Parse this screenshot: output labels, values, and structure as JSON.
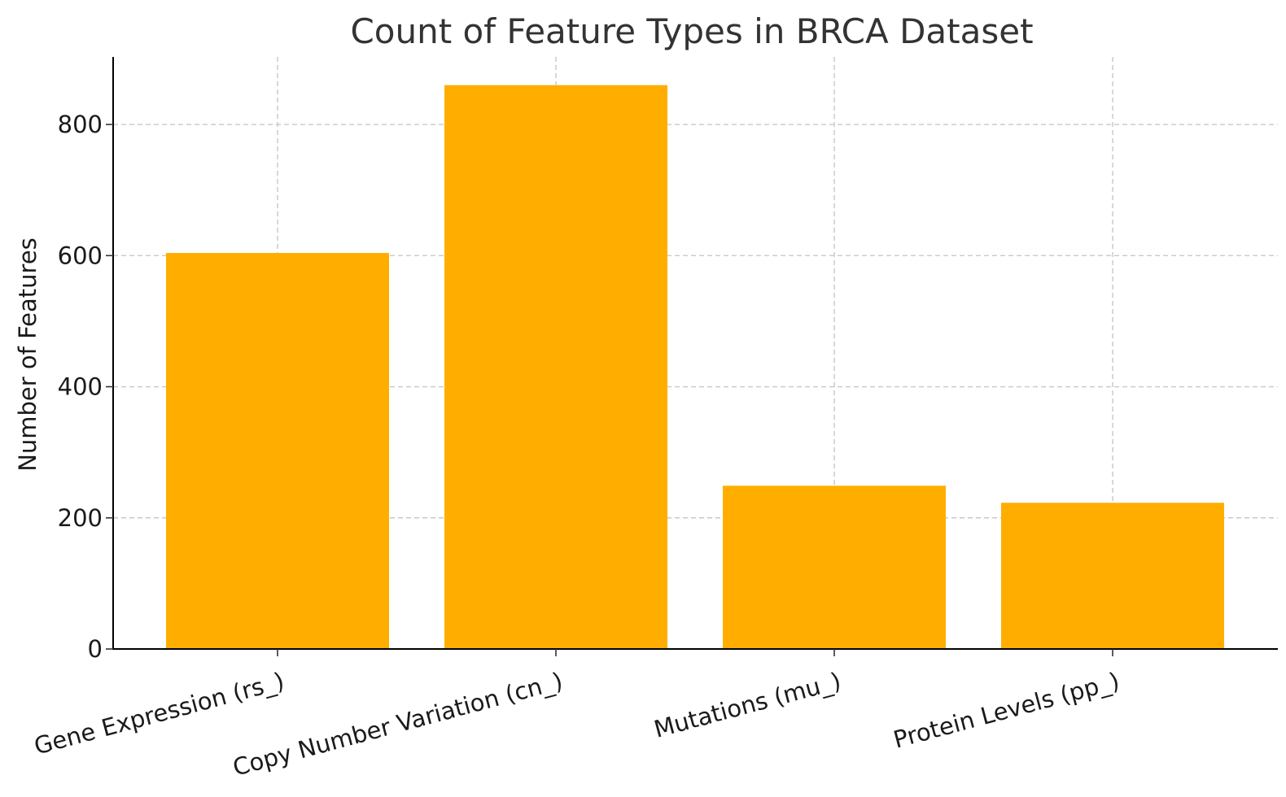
{
  "chart_data": {
    "type": "bar",
    "title": "Count of Feature Types in BRCA Dataset",
    "xlabel": "",
    "ylabel": "Number of Features",
    "categories": [
      "Gene Expression (rs_)",
      "Copy Number Variation (cn_)",
      "Mutations (mu_)",
      "Protein Levels (pp_)"
    ],
    "values": [
      604,
      860,
      249,
      223
    ],
    "ylim": [
      0,
      903
    ],
    "yticks": [
      0,
      200,
      400,
      600,
      800
    ],
    "grid": true,
    "bar_color": "#FFAE00"
  }
}
